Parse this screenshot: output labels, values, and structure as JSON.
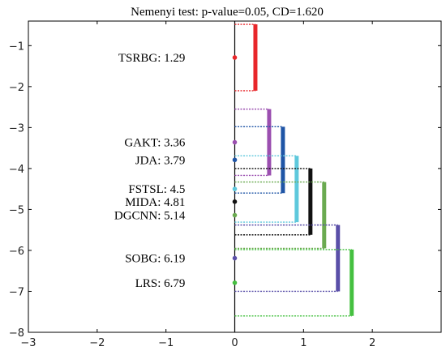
{
  "chart_data": {
    "type": "scatter",
    "title": "Nemenyi test: p-value=0.05, CD=1.620",
    "xlim": [
      -3,
      3
    ],
    "ylim": [
      -8,
      -0.4
    ],
    "x_ticks": [
      -3,
      -2,
      -1,
      0,
      1,
      2
    ],
    "y_ticks": [
      -1,
      -2,
      -3,
      -4,
      -5,
      -6,
      -7,
      -8
    ],
    "x_tick_labels": [
      "−3",
      "−2",
      "−1",
      "0",
      "1",
      "2"
    ],
    "y_tick_labels": [
      "−1",
      "−2",
      "−3",
      "−4",
      "−5",
      "−6",
      "−7",
      "−8"
    ],
    "cd": 1.62,
    "grid": false,
    "points": [
      {
        "label": "TSRBG: 1.29",
        "rank": 1.29,
        "color": "#e8262a"
      },
      {
        "label": "GAKT: 3.36",
        "rank": 3.36,
        "color": "#9b4fb0"
      },
      {
        "label": "JDA: 3.79",
        "rank": 3.79,
        "color": "#1f55a6"
      },
      {
        "label": "FSTSL: 4.5",
        "rank": 4.5,
        "color": "#5ec8dc"
      },
      {
        "label": "MIDA: 4.81",
        "rank": 4.81,
        "color": "#111111"
      },
      {
        "label": "DGCNN: 5.14",
        "rank": 5.14,
        "color": "#6aaa50"
      },
      {
        "label": "SOBG: 6.19",
        "rank": 6.19,
        "color": "#5a4fa8"
      },
      {
        "label": "LRS: 6.79",
        "rank": 6.79,
        "color": "#45c040"
      }
    ]
  }
}
